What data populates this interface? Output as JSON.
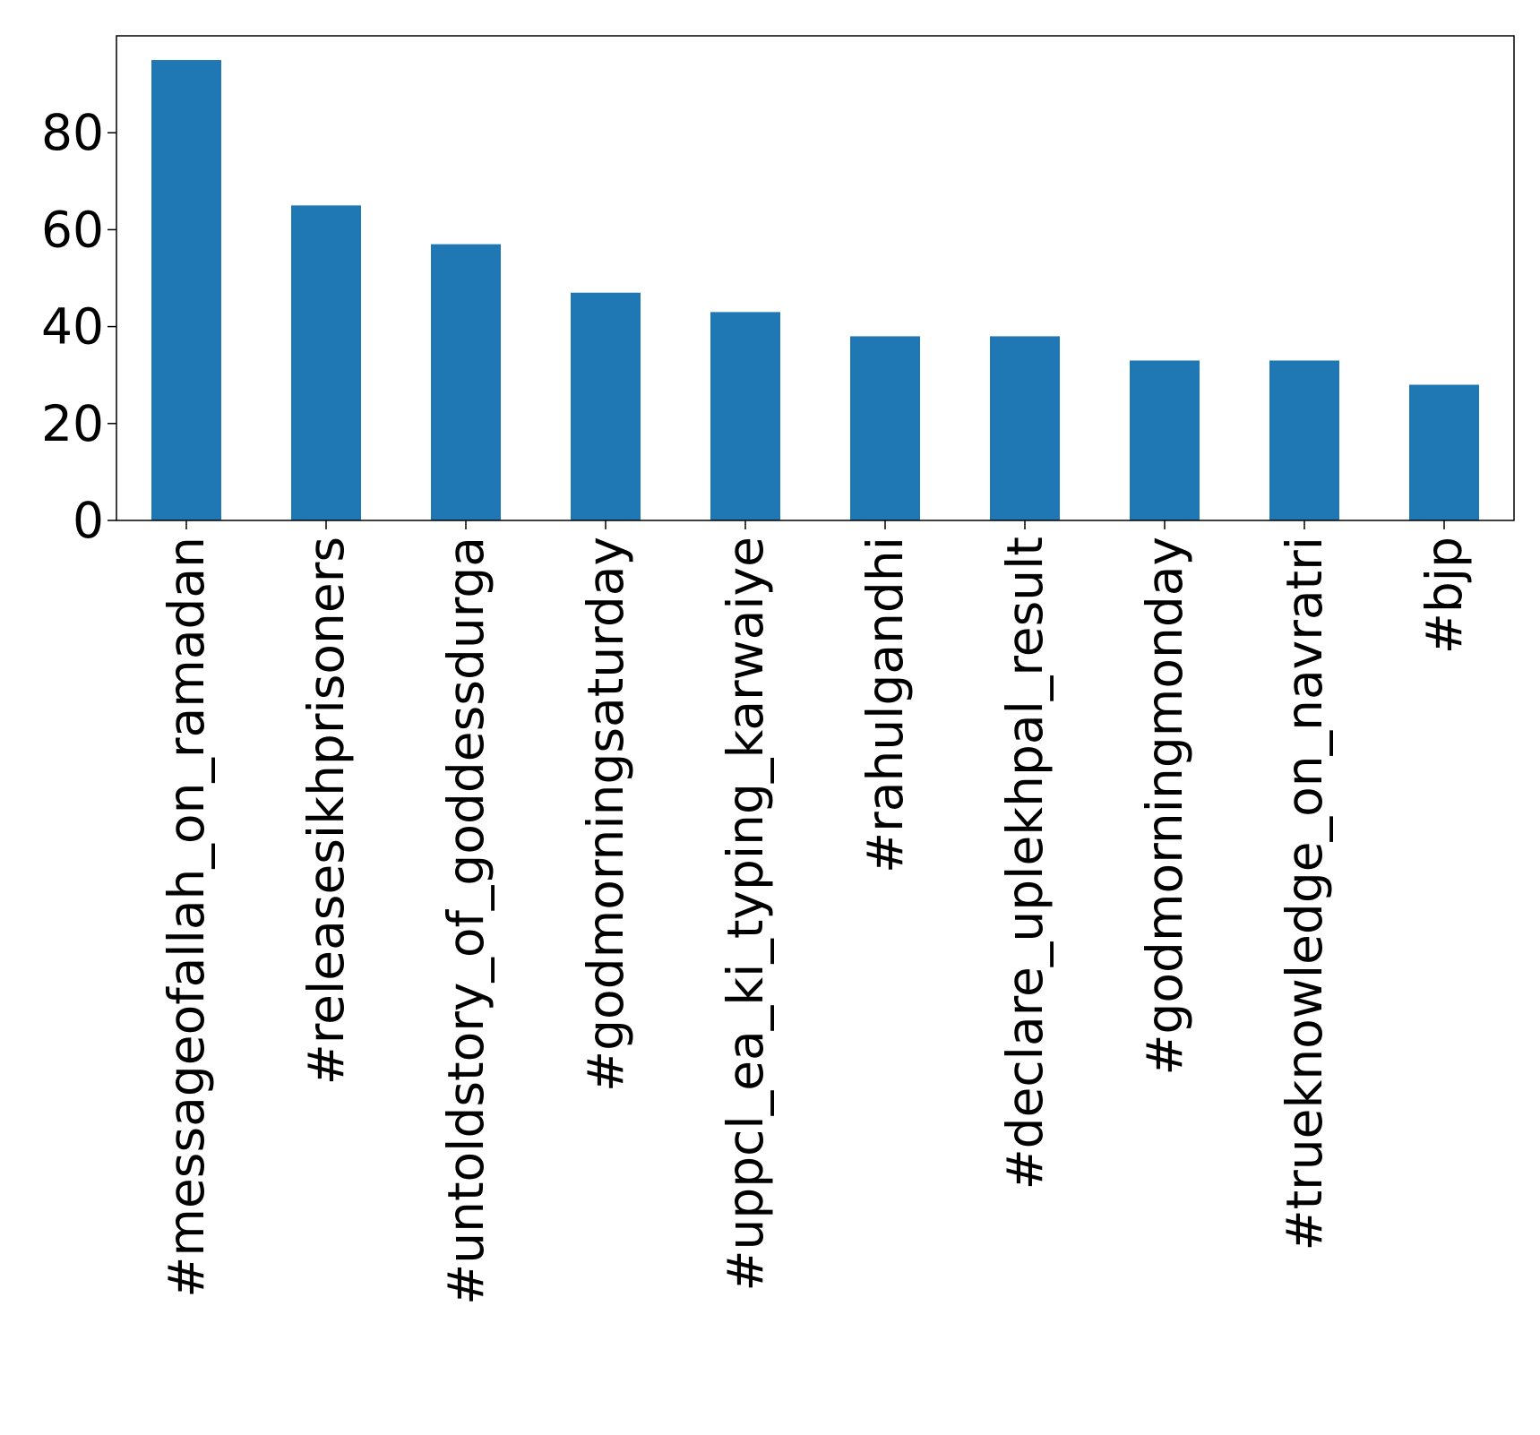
{
  "chart_data": {
    "type": "bar",
    "title": "",
    "xlabel": "",
    "ylabel": "",
    "categories": [
      "#messageofallah_on_ramadan",
      "#releasesikhprisoners",
      "#untoldstory_of_goddessdurga",
      "#godmorningsaturday",
      "#uppcl_ea_ki_typing_karwaiye",
      "#rahulgandhi",
      "#declare_uplekhpal_result",
      "#godmorningmonday",
      "#trueknowledge_on_navratri",
      "#bjp"
    ],
    "values": [
      95,
      65,
      57,
      47,
      43,
      38,
      38,
      33,
      33,
      28
    ],
    "ylim": [
      0,
      100
    ],
    "yticks": [
      0,
      20,
      40,
      60,
      80
    ],
    "grid": false,
    "legend": "none",
    "colors": {
      "bar": "#1f77b4",
      "axis": "#000000",
      "background": "#ffffff"
    }
  }
}
